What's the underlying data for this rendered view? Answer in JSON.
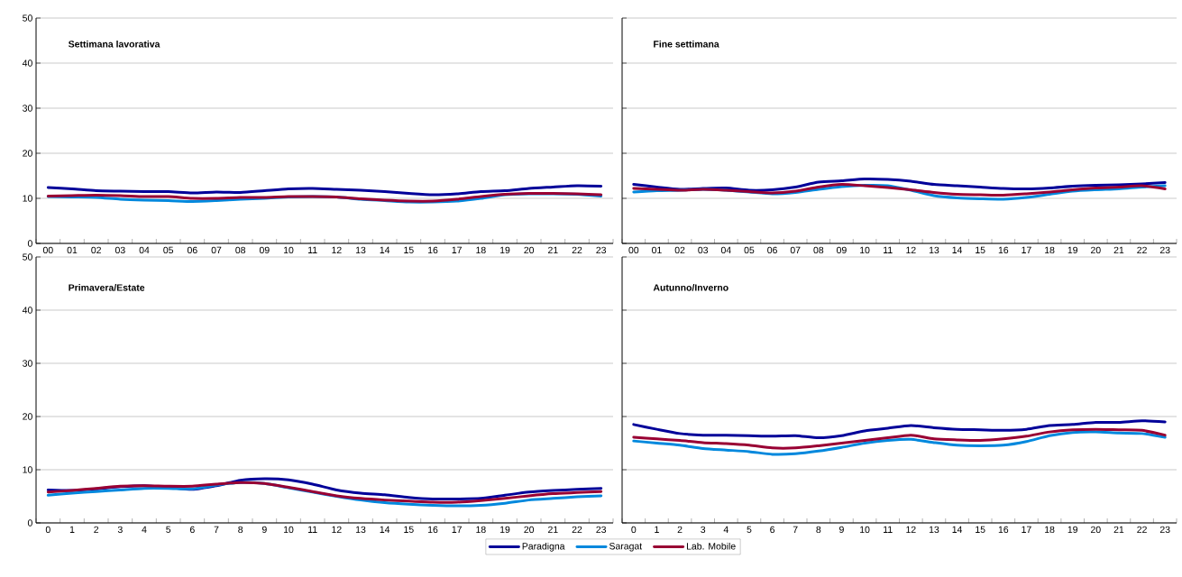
{
  "chart_data": [
    {
      "type": "line",
      "title": "Settimana lavorativa",
      "categories": [
        "00",
        "01",
        "02",
        "03",
        "04",
        "05",
        "06",
        "07",
        "08",
        "09",
        "10",
        "11",
        "12",
        "13",
        "14",
        "15",
        "16",
        "17",
        "18",
        "19",
        "20",
        "21",
        "22",
        "23"
      ],
      "ylim": [
        0,
        50
      ],
      "yticks": [
        0,
        10,
        20,
        30,
        40,
        50
      ],
      "grid": "y",
      "line_style": "solid",
      "series": [
        {
          "color": "#000099",
          "values": [
            12.4,
            12.1,
            11.7,
            11.6,
            11.5,
            11.5,
            11.2,
            11.4,
            11.3,
            11.7,
            12.1,
            12.2,
            12.0,
            11.8,
            11.5,
            11.1,
            10.8,
            11.0,
            11.5,
            11.7,
            12.2,
            12.5,
            12.8,
            12.7
          ]
        },
        {
          "color": "#0088dd",
          "values": [
            10.4,
            10.3,
            10.2,
            9.8,
            9.6,
            9.5,
            9.3,
            9.5,
            9.8,
            10.0,
            10.3,
            10.4,
            10.3,
            9.8,
            9.5,
            9.2,
            9.2,
            9.4,
            10.0,
            10.8,
            11.0,
            11.0,
            10.9,
            10.5
          ]
        },
        {
          "color": "#990033",
          "values": [
            10.5,
            10.6,
            10.7,
            10.6,
            10.4,
            10.4,
            10.0,
            10.0,
            10.2,
            10.2,
            10.4,
            10.4,
            10.3,
            9.9,
            9.6,
            9.4,
            9.4,
            9.8,
            10.4,
            10.9,
            11.1,
            11.1,
            11.0,
            10.8
          ]
        }
      ]
    },
    {
      "type": "line",
      "title": "Fine settimana",
      "categories": [
        "00",
        "01",
        "02",
        "03",
        "04",
        "05",
        "06",
        "07",
        "08",
        "09",
        "10",
        "11",
        "12",
        "13",
        "14",
        "15",
        "16",
        "17",
        "18",
        "19",
        "20",
        "21",
        "22",
        "23"
      ],
      "ylim": [
        0,
        50
      ],
      "yticks": [
        0,
        10,
        20,
        30,
        40,
        50
      ],
      "tick_labels": "x",
      "grid": "y",
      "line_style": "solid",
      "series": [
        {
          "color": "#000099",
          "values": [
            13.1,
            12.5,
            12.0,
            12.2,
            12.3,
            11.8,
            11.9,
            12.5,
            13.6,
            13.9,
            14.3,
            14.2,
            13.8,
            13.1,
            12.8,
            12.5,
            12.2,
            12.1,
            12.3,
            12.7,
            12.9,
            13.0,
            13.2,
            13.5
          ]
        },
        {
          "color": "#0088dd",
          "values": [
            11.4,
            11.7,
            11.8,
            12.0,
            11.8,
            11.4,
            11.0,
            11.3,
            12.0,
            12.6,
            12.9,
            12.8,
            11.8,
            10.6,
            10.1,
            9.9,
            9.8,
            10.2,
            10.9,
            11.6,
            11.9,
            12.1,
            12.5,
            12.8
          ]
        },
        {
          "color": "#990033",
          "values": [
            12.2,
            12.0,
            11.8,
            12.0,
            11.8,
            11.5,
            11.2,
            11.6,
            12.5,
            13.1,
            12.8,
            12.4,
            11.9,
            11.3,
            10.9,
            10.8,
            10.7,
            11.0,
            11.4,
            11.9,
            12.3,
            12.5,
            12.8,
            12.1
          ]
        }
      ]
    },
    {
      "type": "line",
      "title": "Primavera/Estate",
      "categories": [
        "0",
        "1",
        "2",
        "3",
        "4",
        "5",
        "6",
        "7",
        "8",
        "9",
        "10",
        "11",
        "12",
        "13",
        "14",
        "15",
        "16",
        "17",
        "18",
        "19",
        "20",
        "21",
        "22",
        "23"
      ],
      "ylim": [
        0,
        50
      ],
      "yticks": [
        0,
        10,
        20,
        30,
        40,
        50
      ],
      "grid": "y",
      "line_style": "solid",
      "legend": "bottom",
      "series": [
        {
          "name": "Paradigna",
          "color": "#000099",
          "values": [
            6.2,
            6.1,
            6.4,
            6.8,
            7.0,
            6.7,
            6.3,
            7.0,
            8.0,
            8.3,
            8.1,
            7.3,
            6.2,
            5.6,
            5.3,
            4.8,
            4.5,
            4.5,
            4.6,
            5.2,
            5.8,
            6.1,
            6.3,
            6.5
          ]
        },
        {
          "name": "Saragat",
          "color": "#0088dd",
          "values": [
            5.2,
            5.6,
            5.9,
            6.2,
            6.5,
            6.5,
            6.4,
            7.1,
            7.6,
            7.4,
            6.6,
            5.8,
            5.0,
            4.3,
            3.8,
            3.5,
            3.3,
            3.2,
            3.3,
            3.7,
            4.3,
            4.6,
            4.9,
            5.1
          ]
        },
        {
          "name": "Lab. Mobile",
          "color": "#990033",
          "values": [
            5.8,
            6.1,
            6.5,
            6.9,
            7.0,
            6.9,
            6.9,
            7.3,
            7.6,
            7.4,
            6.7,
            5.9,
            5.1,
            4.6,
            4.3,
            4.1,
            3.9,
            3.9,
            4.2,
            4.6,
            5.1,
            5.5,
            5.7,
            5.9
          ]
        }
      ]
    },
    {
      "type": "line",
      "title": "Autunno/Inverno",
      "categories": [
        "0",
        "1",
        "2",
        "3",
        "4",
        "5",
        "6",
        "7",
        "8",
        "9",
        "10",
        "11",
        "12",
        "13",
        "14",
        "15",
        "16",
        "17",
        "18",
        "19",
        "20",
        "21",
        "22",
        "23"
      ],
      "ylim": [
        0,
        50
      ],
      "yticks": [
        0,
        10,
        20,
        30,
        40,
        50
      ],
      "tick_labels": "x",
      "grid": "y",
      "line_style": "solid",
      "series": [
        {
          "color": "#000099",
          "values": [
            18.5,
            17.6,
            16.8,
            16.5,
            16.5,
            16.4,
            16.3,
            16.4,
            16.0,
            16.4,
            17.3,
            17.8,
            18.3,
            17.9,
            17.6,
            17.5,
            17.4,
            17.6,
            18.3,
            18.5,
            18.9,
            18.9,
            19.2,
            19.0
          ]
        },
        {
          "color": "#0088dd",
          "values": [
            15.4,
            15.0,
            14.6,
            14.0,
            13.7,
            13.4,
            12.9,
            13.0,
            13.5,
            14.2,
            15.0,
            15.5,
            15.7,
            15.1,
            14.6,
            14.5,
            14.6,
            15.3,
            16.4,
            17.0,
            17.1,
            16.9,
            16.8,
            16.1
          ]
        },
        {
          "color": "#990033",
          "values": [
            16.1,
            15.8,
            15.5,
            15.1,
            14.9,
            14.6,
            14.1,
            14.1,
            14.5,
            15.0,
            15.5,
            16.0,
            16.5,
            15.8,
            15.6,
            15.5,
            15.8,
            16.3,
            17.1,
            17.5,
            17.6,
            17.5,
            17.4,
            16.5
          ]
        }
      ]
    }
  ]
}
